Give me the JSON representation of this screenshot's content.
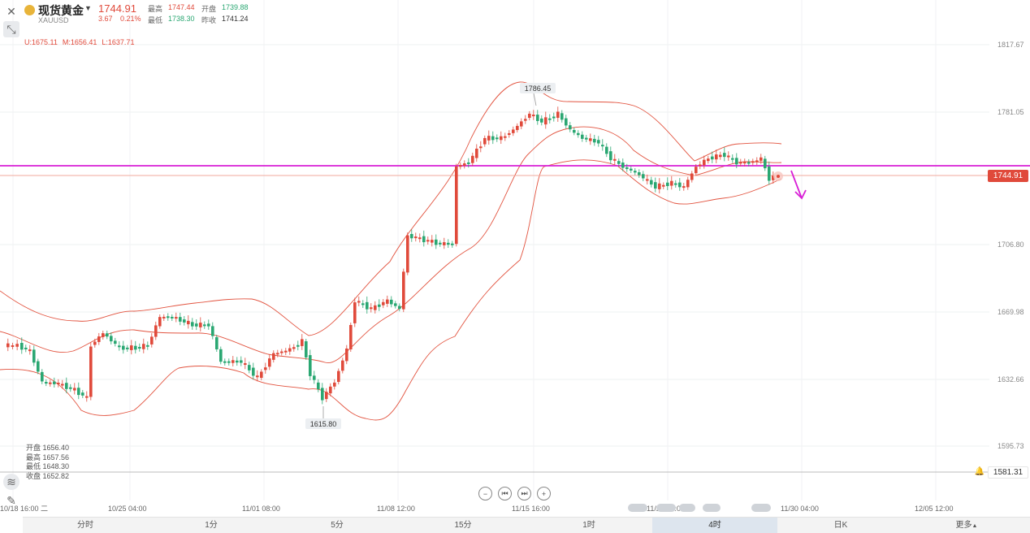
{
  "header": {
    "symbol_name": "现货黄金",
    "symbol_code": "XAUUSD",
    "price": "1744.91",
    "change_abs": "3.67",
    "change_pct": "0.21%",
    "high_label": "最高",
    "high_value": "1747.44",
    "open_label": "开盘",
    "open_value": "1739.88",
    "low_label": "最低",
    "low_value": "1738.30",
    "prev_close_label": "昨收",
    "prev_close_value": "1741.24"
  },
  "boll": {
    "upper": "U:1675.11",
    "middle": "M:1656.41",
    "lower": "L:1637.71"
  },
  "ohlc_box": {
    "open": "开盘 1656.40",
    "high": "最高 1657.56",
    "low": "最低 1648.30",
    "close": "收盘 1652.82"
  },
  "price_axis": [
    "1817.67",
    "1781.05",
    "1706.80",
    "1669.98",
    "1632.66",
    "1595.73"
  ],
  "time_axis": [
    "10/18 16:00 二",
    "10/25 04:00",
    "11/01 08:00",
    "11/08 12:00",
    "11/15 16:00",
    "11/22 20:00",
    "11/30 04:00",
    "12/05 12:00"
  ],
  "annotations": {
    "peak": "1786.45",
    "trough": "1615.80"
  },
  "current_price_tag": "1744.91",
  "alert_price_tag": "1581.31",
  "timeframes": [
    "分时",
    "1分",
    "5分",
    "15分",
    "1时",
    "4时",
    "日K",
    "更多"
  ],
  "active_timeframe": "4时",
  "colors": {
    "up": "#e04a3b",
    "down": "#2aa772",
    "boll_band": "#e2533f",
    "horizontal_line": "#d81fd6",
    "arrow": "#d81fd6"
  },
  "icons": [
    "close-icon",
    "crosshair-icon",
    "layers-icon",
    "draw-pen-icon",
    "alert-bell-icon",
    "gold-badge-icon"
  ]
}
